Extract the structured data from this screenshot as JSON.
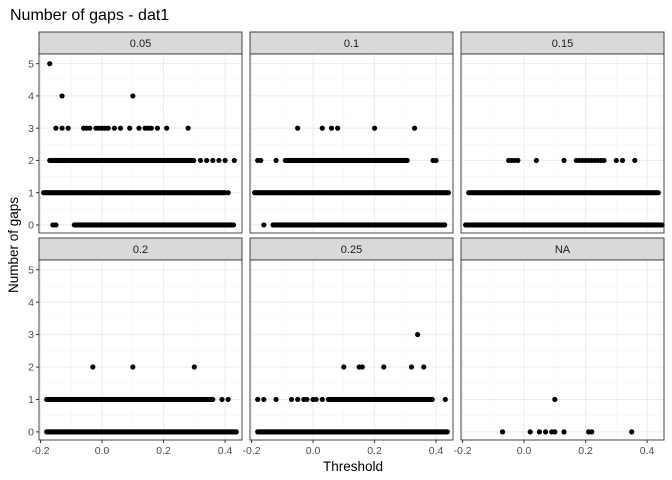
{
  "chart_data": {
    "type": "scatter",
    "title": "Number of gaps - dat1",
    "xlabel": "Threshold",
    "ylabel": "Number of gaps",
    "xlim": [
      -0.205,
      0.455
    ],
    "ylim": [
      -0.25,
      5.3
    ],
    "x_ticks": [
      -0.2,
      0.0,
      0.2,
      0.4
    ],
    "x_tick_labels": [
      "-0.2",
      "0.0",
      "0.2",
      "0.4"
    ],
    "y_ticks": [
      0,
      1,
      2,
      3,
      4,
      5
    ],
    "y_tick_labels": [
      "0",
      "1",
      "2",
      "3",
      "4",
      "5"
    ],
    "grid": true,
    "facet_layout": "2 rows x 3 columns",
    "panels": [
      {
        "label": "0.05",
        "points": [
          {
            "x": -0.17,
            "y": 5
          },
          {
            "x": -0.13,
            "y": 4
          },
          {
            "x": 0.1,
            "y": 4
          },
          {
            "x": -0.15,
            "y": 3
          },
          {
            "x": -0.13,
            "y": 3
          },
          {
            "x": -0.11,
            "y": 3
          },
          {
            "x": -0.06,
            "y": 3
          },
          {
            "x": -0.05,
            "y": 3
          },
          {
            "x": -0.04,
            "y": 3
          },
          {
            "x": -0.02,
            "y": 3
          },
          {
            "x": -0.01,
            "y": 3
          },
          {
            "x": 0.0,
            "y": 3
          },
          {
            "x": 0.01,
            "y": 3
          },
          {
            "x": 0.02,
            "y": 3
          },
          {
            "x": 0.04,
            "y": 3
          },
          {
            "x": 0.06,
            "y": 3
          },
          {
            "x": 0.09,
            "y": 3
          },
          {
            "x": 0.12,
            "y": 3
          },
          {
            "x": 0.14,
            "y": 3
          },
          {
            "x": 0.15,
            "y": 3
          },
          {
            "x": 0.16,
            "y": 3
          },
          {
            "x": 0.18,
            "y": 3
          },
          {
            "x": 0.21,
            "y": 3
          },
          {
            "x": 0.28,
            "y": 3
          },
          {
            "x": -0.16,
            "y": 0
          },
          {
            "x": -0.15,
            "y": 0
          }
        ],
        "segments": [
          {
            "y": 2,
            "x_from": -0.17,
            "x_to": 0.3
          },
          {
            "y": 1,
            "x_from": -0.19,
            "x_to": 0.4
          },
          {
            "y": 0,
            "x_from": -0.09,
            "x_to": 0.43
          }
        ],
        "extra_points": [
          {
            "x": -0.15,
            "y": 2
          },
          {
            "x": -0.12,
            "y": 2
          },
          {
            "x": 0.32,
            "y": 2
          },
          {
            "x": 0.34,
            "y": 2
          },
          {
            "x": 0.36,
            "y": 2
          },
          {
            "x": 0.38,
            "y": 2
          },
          {
            "x": 0.4,
            "y": 2
          },
          {
            "x": 0.43,
            "y": 2
          },
          {
            "x": 0.41,
            "y": 1
          }
        ]
      },
      {
        "label": "0.1",
        "points": [
          {
            "x": -0.05,
            "y": 3
          },
          {
            "x": 0.03,
            "y": 3
          },
          {
            "x": 0.06,
            "y": 3
          },
          {
            "x": 0.08,
            "y": 3
          },
          {
            "x": 0.2,
            "y": 3
          },
          {
            "x": 0.33,
            "y": 3
          },
          {
            "x": -0.18,
            "y": 2
          },
          {
            "x": -0.17,
            "y": 2
          },
          {
            "x": -0.12,
            "y": 2
          },
          {
            "x": 0.39,
            "y": 2
          },
          {
            "x": 0.4,
            "y": 2
          },
          {
            "x": -0.16,
            "y": 0
          }
        ],
        "segments": [
          {
            "y": 2,
            "x_from": -0.09,
            "x_to": 0.31
          },
          {
            "y": 1,
            "x_from": -0.19,
            "x_to": 0.44
          },
          {
            "y": 0,
            "x_from": -0.13,
            "x_to": 0.43
          }
        ],
        "extra_points": []
      },
      {
        "label": "0.15",
        "points": [
          {
            "x": -0.05,
            "y": 2
          },
          {
            "x": -0.04,
            "y": 2
          },
          {
            "x": -0.03,
            "y": 2
          },
          {
            "x": -0.02,
            "y": 2
          },
          {
            "x": 0.04,
            "y": 2
          },
          {
            "x": 0.13,
            "y": 2
          },
          {
            "x": 0.17,
            "y": 2
          },
          {
            "x": 0.18,
            "y": 2
          },
          {
            "x": 0.19,
            "y": 2
          },
          {
            "x": 0.2,
            "y": 2
          },
          {
            "x": 0.21,
            "y": 2
          },
          {
            "x": 0.22,
            "y": 2
          },
          {
            "x": 0.23,
            "y": 2
          },
          {
            "x": 0.24,
            "y": 2
          },
          {
            "x": 0.25,
            "y": 2
          },
          {
            "x": 0.26,
            "y": 2
          },
          {
            "x": 0.3,
            "y": 2
          },
          {
            "x": 0.32,
            "y": 2
          },
          {
            "x": 0.36,
            "y": 2
          }
        ],
        "segments": [
          {
            "y": 1,
            "x_from": -0.18,
            "x_to": 0.44
          },
          {
            "y": 0,
            "x_from": -0.19,
            "x_to": 0.45
          }
        ],
        "extra_points": []
      },
      {
        "label": "0.2",
        "points": [
          {
            "x": -0.03,
            "y": 2
          },
          {
            "x": 0.1,
            "y": 2
          },
          {
            "x": 0.3,
            "y": 2
          },
          {
            "x": 0.39,
            "y": 1
          },
          {
            "x": 0.41,
            "y": 1
          }
        ],
        "segments": [
          {
            "y": 1,
            "x_from": -0.18,
            "x_to": 0.36
          },
          {
            "y": 0,
            "x_from": -0.18,
            "x_to": 0.44
          }
        ],
        "extra_points": []
      },
      {
        "label": "0.25",
        "points": [
          {
            "x": 0.34,
            "y": 3
          },
          {
            "x": 0.1,
            "y": 2
          },
          {
            "x": 0.15,
            "y": 2
          },
          {
            "x": 0.16,
            "y": 2
          },
          {
            "x": 0.23,
            "y": 2
          },
          {
            "x": 0.32,
            "y": 2
          },
          {
            "x": 0.36,
            "y": 2
          },
          {
            "x": -0.18,
            "y": 1
          },
          {
            "x": -0.16,
            "y": 1
          },
          {
            "x": -0.12,
            "y": 1
          },
          {
            "x": -0.07,
            "y": 1
          },
          {
            "x": -0.05,
            "y": 1
          },
          {
            "x": -0.03,
            "y": 1
          },
          {
            "x": -0.02,
            "y": 1
          },
          {
            "x": 0.0,
            "y": 1
          },
          {
            "x": 0.01,
            "y": 1
          },
          {
            "x": 0.03,
            "y": 1
          },
          {
            "x": 0.43,
            "y": 1
          }
        ],
        "segments": [
          {
            "y": 1,
            "x_from": 0.05,
            "x_to": 0.39
          },
          {
            "y": 0,
            "x_from": -0.18,
            "x_to": 0.44
          }
        ],
        "extra_points": []
      },
      {
        "label": "NA",
        "points": [
          {
            "x": 0.1,
            "y": 1
          },
          {
            "x": -0.07,
            "y": 0
          },
          {
            "x": 0.02,
            "y": 0
          },
          {
            "x": 0.05,
            "y": 0
          },
          {
            "x": 0.07,
            "y": 0
          },
          {
            "x": 0.09,
            "y": 0
          },
          {
            "x": 0.1,
            "y": 0
          },
          {
            "x": 0.13,
            "y": 0
          },
          {
            "x": 0.21,
            "y": 0
          },
          {
            "x": 0.22,
            "y": 0
          },
          {
            "x": 0.35,
            "y": 0
          }
        ],
        "segments": [],
        "extra_points": []
      }
    ]
  }
}
